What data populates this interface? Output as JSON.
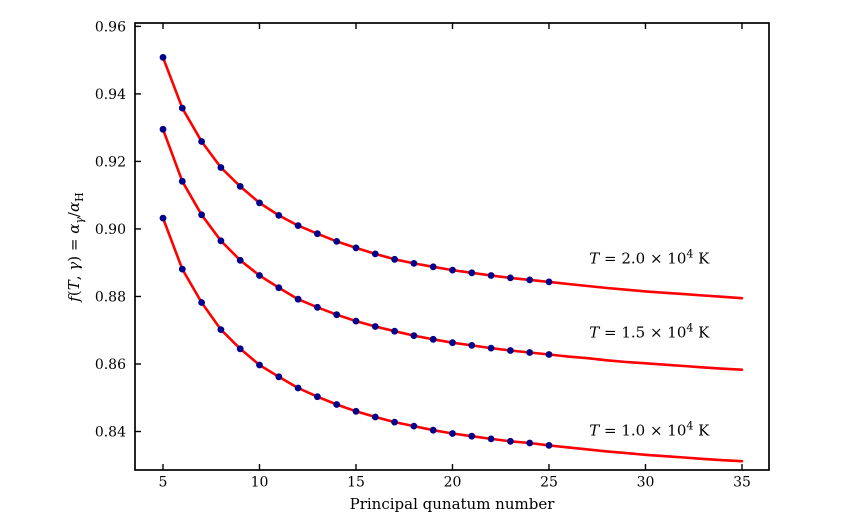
{
  "chart_data": {
    "type": "line",
    "title": "",
    "xlabel": "Principal qunatum number",
    "ylabel": "f(T, γ) = α_γ/α_H",
    "ylabel_parts": [
      {
        "t": "f",
        "i": true
      },
      {
        "t": "("
      },
      {
        "t": "T",
        "i": true
      },
      {
        "t": ", "
      },
      {
        "t": "γ",
        "i": true
      },
      {
        "t": ") = "
      },
      {
        "t": "α",
        "i": true
      },
      {
        "t": "γ",
        "i": true,
        "sub": true
      },
      {
        "t": "/"
      },
      {
        "t": "α",
        "i": true
      },
      {
        "t": "H",
        "sub": true
      }
    ],
    "xlim": [
      3.55,
      36.4
    ],
    "ylim": [
      0.8286,
      0.961
    ],
    "xticks": [
      5,
      10,
      15,
      20,
      25,
      30,
      35
    ],
    "yticks": [
      0.84,
      0.86,
      0.88,
      0.9,
      0.92,
      0.94,
      0.96
    ],
    "ytick_labels": [
      "0.84",
      "0.86",
      "0.88",
      "0.90",
      "0.92",
      "0.94",
      "0.96"
    ],
    "grid": false,
    "legend_position": "inline annotations right of each curve",
    "marker_max_x": 25,
    "x": [
      5,
      6,
      7,
      8,
      9,
      10,
      11,
      12,
      13,
      14,
      15,
      16,
      17,
      18,
      19,
      20,
      21,
      22,
      23,
      24,
      25,
      26,
      27,
      28,
      29,
      30,
      31,
      32,
      33,
      34,
      35
    ],
    "series": [
      {
        "name": "T = 2.0 × 10⁴ K",
        "values": [
          0.9508,
          0.9358,
          0.9259,
          0.9182,
          0.9126,
          0.9077,
          0.904,
          0.901,
          0.8986,
          0.8963,
          0.8944,
          0.8926,
          0.891,
          0.8898,
          0.8888,
          0.8878,
          0.887,
          0.8862,
          0.8855,
          0.8849,
          0.8843,
          0.8837,
          0.8831,
          0.8825,
          0.882,
          0.8815,
          0.8811,
          0.8807,
          0.8803,
          0.8799,
          0.8795
        ]
      },
      {
        "name": "T = 1.5 × 10⁴ K",
        "values": [
          0.9295,
          0.9141,
          0.9042,
          0.8965,
          0.8907,
          0.8862,
          0.8826,
          0.8792,
          0.8768,
          0.8746,
          0.8727,
          0.8711,
          0.8697,
          0.8684,
          0.8673,
          0.8663,
          0.8655,
          0.8647,
          0.864,
          0.8634,
          0.8628,
          0.8622,
          0.8617,
          0.8611,
          0.8606,
          0.8602,
          0.8598,
          0.8594,
          0.859,
          0.8586,
          0.8583
        ]
      },
      {
        "name": "T = 1.0 × 10⁴ K",
        "values": [
          0.9032,
          0.8881,
          0.8782,
          0.8702,
          0.8645,
          0.8597,
          0.8562,
          0.8529,
          0.8503,
          0.848,
          0.846,
          0.8443,
          0.8428,
          0.8416,
          0.8404,
          0.8394,
          0.8386,
          0.8378,
          0.8371,
          0.8366,
          0.8359,
          0.8353,
          0.8347,
          0.8341,
          0.8336,
          0.8331,
          0.8327,
          0.8323,
          0.8319,
          0.8315,
          0.8312
        ]
      }
    ],
    "annotations": [
      {
        "x": 30.2,
        "y": 0.8912,
        "parts": [
          {
            "t": "T",
            "i": true
          },
          {
            "t": " = 2.0 × 10"
          },
          {
            "t": "4",
            "sup": true
          },
          {
            "t": " K"
          }
        ]
      },
      {
        "x": 30.2,
        "y": 0.8693,
        "parts": [
          {
            "t": "T",
            "i": true
          },
          {
            "t": " = 1.5 × 10"
          },
          {
            "t": "4",
            "sup": true
          },
          {
            "t": " K"
          }
        ]
      },
      {
        "x": 30.2,
        "y": 0.8403,
        "parts": [
          {
            "t": "T",
            "i": true
          },
          {
            "t": " = 1.0 × 10"
          },
          {
            "t": "4",
            "sup": true
          },
          {
            "t": " K"
          }
        ]
      }
    ],
    "colors": {
      "line": "#ff0000",
      "marker": "#00008b",
      "spine": "#000000",
      "text": "#000000",
      "background": "#ffffff"
    }
  }
}
